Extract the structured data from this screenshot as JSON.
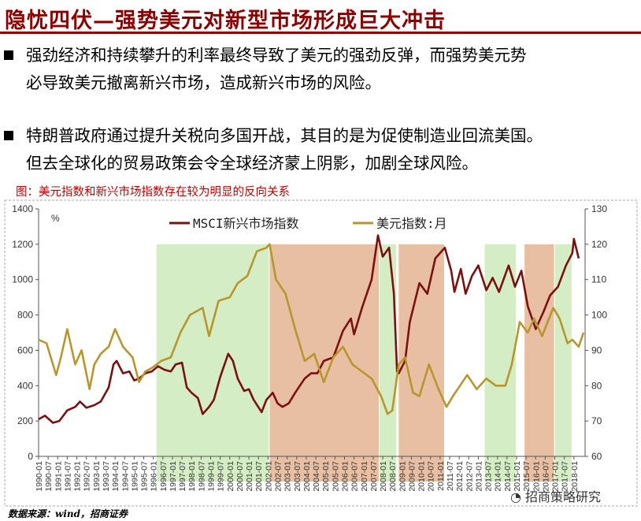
{
  "slide": {
    "title": "隐忧四伏—强势美元对新型市场形成巨大冲击",
    "bullets": [
      {
        "line1": "强劲经济和持续攀升的利率最终导致了美元的强劲反弹，而强势美元势",
        "line2": "必导致美元撤离新兴市场，造成新兴市场的风险。"
      },
      {
        "line1": "特朗普政府通过提升关税向多国开战，其目的是为促使制造业回流美国。",
        "line2": "但去全球化的贸易政策会令全球经济蒙上阴影，加剧全球风险。"
      }
    ],
    "caption": "图：美元指数和新兴市场指数存在较为明显的反向关系",
    "source": "数据来源：wind，招商证券",
    "watermark": "招商策略研究"
  },
  "chart_data": {
    "type": "line",
    "ylabel": "%",
    "y_left_lim": [
      0,
      1400
    ],
    "y_left_ticks": [
      "0",
      "200",
      "400",
      "600",
      "800",
      "1000",
      "1200",
      "1400"
    ],
    "y_right_lim": [
      60,
      130
    ],
    "y_right_ticks": [
      "60",
      "70",
      "80",
      "90",
      "100",
      "110",
      "120",
      "130"
    ],
    "x_ticks": [
      "1990-01",
      "1990-07",
      "1991-01",
      "1991-07",
      "1992-01",
      "1992-07",
      "1993-01",
      "1993-07",
      "1994-01",
      "1994-07",
      "1995-01",
      "1995-07",
      "1996-01",
      "1996-07",
      "1997-01",
      "1997-07",
      "1998-01",
      "1998-07",
      "1999-01",
      "1999-07",
      "2000-01",
      "2000-07",
      "2001-01",
      "2001-07",
      "2002-01",
      "2002-07",
      "2003-01",
      "2003-07",
      "2004-01",
      "2004-07",
      "2005-01",
      "2005-07",
      "2006-01",
      "2006-07",
      "2007-01",
      "2007-07",
      "2008-01",
      "2008-07",
      "2009-01",
      "2009-07",
      "2010-01",
      "2010-07",
      "2011-01",
      "2011-07",
      "2012-01",
      "2012-07",
      "2013-01",
      "2013-07",
      "2014-01",
      "2014-07",
      "2015-01",
      "2015-07",
      "2016-01",
      "2016-07",
      "2017-01",
      "2017-07",
      "2018-01"
    ],
    "legend": [
      "MSCI新兴市场指数",
      "美元指数:月"
    ],
    "colors": {
      "msci": "#7B1010",
      "usd": "#B8962E",
      "green": "#D5EDC4",
      "orange": "#E8BFA2"
    },
    "shaded": [
      {
        "from": "1996-03",
        "to": "2002-02",
        "color": "green"
      },
      {
        "from": "2002-02",
        "to": "2007-11",
        "color": "orange"
      },
      {
        "from": "2007-11",
        "to": "2008-10",
        "color": "green"
      },
      {
        "from": "2008-11",
        "to": "2011-04",
        "color": "orange"
      },
      {
        "from": "2013-05",
        "to": "2015-01",
        "color": "green"
      },
      {
        "from": "2015-06",
        "to": "2017-01",
        "color": "orange"
      },
      {
        "from": "2017-01",
        "to": "2017-12",
        "color": "green"
      }
    ],
    "series": [
      {
        "name": "MSCI新兴市场指数",
        "axis": "left",
        "points": [
          [
            "1990-01",
            210
          ],
          [
            "1990-05",
            230
          ],
          [
            "1990-10",
            190
          ],
          [
            "1991-02",
            200
          ],
          [
            "1991-07",
            260
          ],
          [
            "1991-12",
            280
          ],
          [
            "1992-03",
            310
          ],
          [
            "1992-07",
            275
          ],
          [
            "1992-12",
            290
          ],
          [
            "1993-04",
            310
          ],
          [
            "1993-09",
            390
          ],
          [
            "1993-12",
            520
          ],
          [
            "1994-02",
            540
          ],
          [
            "1994-06",
            470
          ],
          [
            "1994-10",
            480
          ],
          [
            "1995-01",
            430
          ],
          [
            "1995-04",
            440
          ],
          [
            "1995-08",
            470
          ],
          [
            "1995-12",
            480
          ],
          [
            "1996-04",
            510
          ],
          [
            "1996-08",
            490
          ],
          [
            "1996-12",
            480
          ],
          [
            "1997-03",
            520
          ],
          [
            "1997-07",
            530
          ],
          [
            "1997-10",
            390
          ],
          [
            "1998-01",
            360
          ],
          [
            "1998-05",
            330
          ],
          [
            "1998-08",
            240
          ],
          [
            "1998-12",
            280
          ],
          [
            "1999-03",
            320
          ],
          [
            "1999-07",
            450
          ],
          [
            "1999-12",
            580
          ],
          [
            "2000-03",
            540
          ],
          [
            "2000-06",
            440
          ],
          [
            "2000-10",
            370
          ],
          [
            "2001-01",
            380
          ],
          [
            "2001-04",
            320
          ],
          [
            "2001-09",
            250
          ],
          [
            "2001-12",
            320
          ],
          [
            "2002-04",
            360
          ],
          [
            "2002-07",
            300
          ],
          [
            "2002-10",
            280
          ],
          [
            "2003-02",
            300
          ],
          [
            "2003-06",
            360
          ],
          [
            "2003-12",
            440
          ],
          [
            "2004-04",
            470
          ],
          [
            "2004-08",
            470
          ],
          [
            "2004-12",
            540
          ],
          [
            "2005-06",
            560
          ],
          [
            "2005-12",
            710
          ],
          [
            "2006-05",
            780
          ],
          [
            "2006-07",
            690
          ],
          [
            "2006-12",
            840
          ],
          [
            "2007-06",
            1000
          ],
          [
            "2007-10",
            1250
          ],
          [
            "2008-01",
            1130
          ],
          [
            "2008-05",
            1180
          ],
          [
            "2008-08",
            920
          ],
          [
            "2008-10",
            480
          ],
          [
            "2008-11",
            470
          ],
          [
            "2009-03",
            540
          ],
          [
            "2009-06",
            760
          ],
          [
            "2009-12",
            980
          ],
          [
            "2010-05",
            920
          ],
          [
            "2010-10",
            1120
          ],
          [
            "2011-04",
            1180
          ],
          [
            "2011-08",
            1050
          ],
          [
            "2011-10",
            930
          ],
          [
            "2012-02",
            1060
          ],
          [
            "2012-05",
            920
          ],
          [
            "2012-09",
            1020
          ],
          [
            "2013-01",
            1080
          ],
          [
            "2013-06",
            940
          ],
          [
            "2013-10",
            1010
          ],
          [
            "2014-02",
            930
          ],
          [
            "2014-08",
            1080
          ],
          [
            "2014-12",
            960
          ],
          [
            "2015-04",
            1050
          ],
          [
            "2015-08",
            850
          ],
          [
            "2016-01",
            720
          ],
          [
            "2016-06",
            820
          ],
          [
            "2016-10",
            910
          ],
          [
            "2017-03",
            960
          ],
          [
            "2017-08",
            1080
          ],
          [
            "2017-12",
            1150
          ],
          [
            "2018-01",
            1230
          ],
          [
            "2018-04",
            1120
          ]
        ]
      },
      {
        "name": "美元指数:月",
        "axis": "right",
        "points": [
          [
            "1990-01",
            93
          ],
          [
            "1990-06",
            92
          ],
          [
            "1990-12",
            83
          ],
          [
            "1991-03",
            88
          ],
          [
            "1991-07",
            96
          ],
          [
            "1991-12",
            86
          ],
          [
            "1992-04",
            90
          ],
          [
            "1992-09",
            79
          ],
          [
            "1992-12",
            86
          ],
          [
            "1993-04",
            89
          ],
          [
            "1993-09",
            91
          ],
          [
            "1994-01",
            96
          ],
          [
            "1994-06",
            91
          ],
          [
            "1994-12",
            88
          ],
          [
            "1995-04",
            81
          ],
          [
            "1995-08",
            84
          ],
          [
            "1995-12",
            85
          ],
          [
            "1996-06",
            87
          ],
          [
            "1996-12",
            88
          ],
          [
            "1997-06",
            95
          ],
          [
            "1997-12",
            100
          ],
          [
            "1998-08",
            102
          ],
          [
            "1998-12",
            94
          ],
          [
            "1999-06",
            104
          ],
          [
            "2000-01",
            105
          ],
          [
            "2000-06",
            109
          ],
          [
            "2000-12",
            111
          ],
          [
            "2001-06",
            118
          ],
          [
            "2001-12",
            119
          ],
          [
            "2002-02",
            120
          ],
          [
            "2002-06",
            110
          ],
          [
            "2002-12",
            106
          ],
          [
            "2003-06",
            96
          ],
          [
            "2003-12",
            87
          ],
          [
            "2004-06",
            89
          ],
          [
            "2004-12",
            81
          ],
          [
            "2005-06",
            88
          ],
          [
            "2005-12",
            91
          ],
          [
            "2006-06",
            86
          ],
          [
            "2006-12",
            84
          ],
          [
            "2007-06",
            82
          ],
          [
            "2007-12",
            77
          ],
          [
            "2008-04",
            72
          ],
          [
            "2008-07",
            73
          ],
          [
            "2008-11",
            86
          ],
          [
            "2009-03",
            88
          ],
          [
            "2009-08",
            78
          ],
          [
            "2009-12",
            77
          ],
          [
            "2010-06",
            86
          ],
          [
            "2010-12",
            79
          ],
          [
            "2011-05",
            74
          ],
          [
            "2011-09",
            77
          ],
          [
            "2012-06",
            83
          ],
          [
            "2012-12",
            79
          ],
          [
            "2013-06",
            82
          ],
          [
            "2013-12",
            80
          ],
          [
            "2014-06",
            80
          ],
          [
            "2014-10",
            86
          ],
          [
            "2015-03",
            98
          ],
          [
            "2015-08",
            95
          ],
          [
            "2015-12",
            99
          ],
          [
            "2016-05",
            94
          ],
          [
            "2016-12",
            102
          ],
          [
            "2017-04",
            99
          ],
          [
            "2017-09",
            92
          ],
          [
            "2017-12",
            93
          ],
          [
            "2018-04",
            91
          ],
          [
            "2018-07",
            95
          ]
        ]
      }
    ]
  }
}
